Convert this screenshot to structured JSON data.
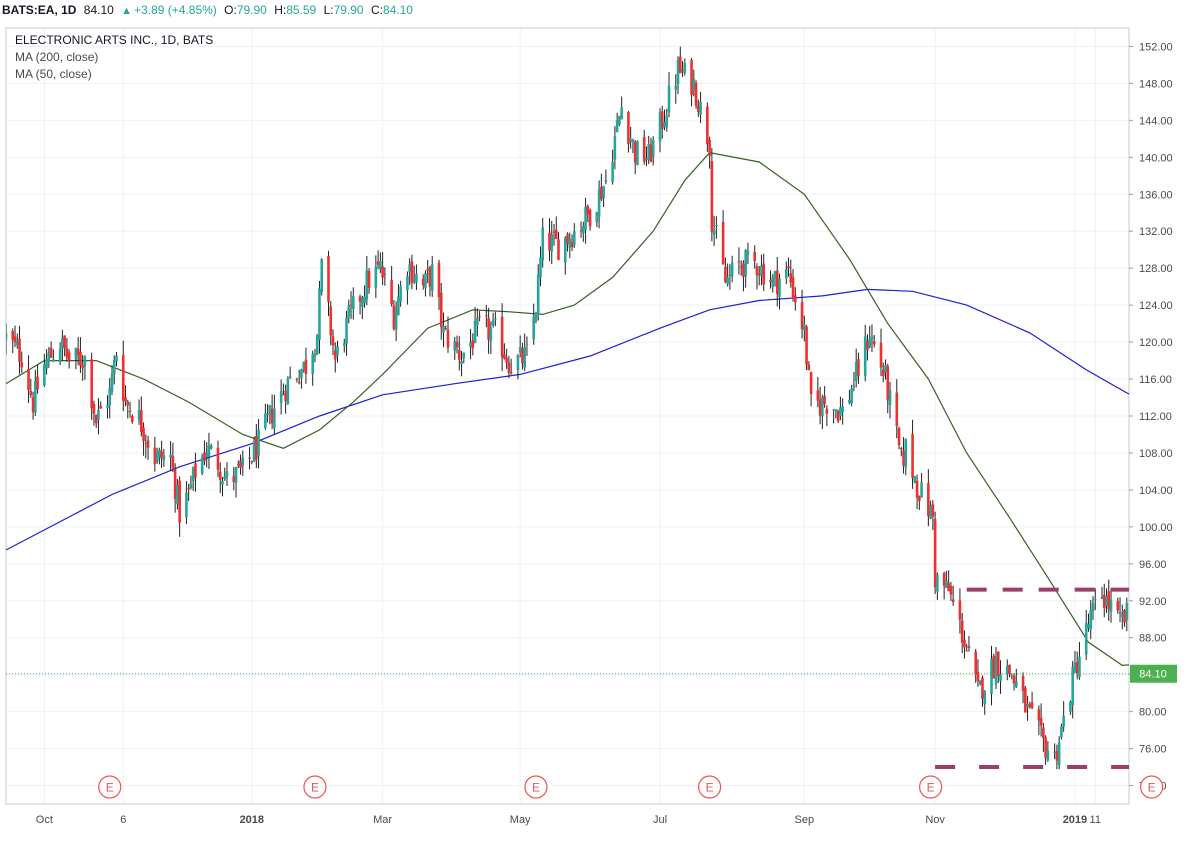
{
  "header": {
    "symbol": "BATS:EA, 1D",
    "last": "84.10",
    "change": "+3.89 (+4.85%)",
    "o_label": "O:",
    "o_val": "79.90",
    "h_label": "H:",
    "h_val": "85.59",
    "l_label": "L:",
    "l_val": "79.90",
    "c_label": "C:",
    "c_val": "84.10"
  },
  "legend": {
    "title": "ELECTRONIC ARTS INC., 1D, BATS",
    "ma200": "MA (200, close)",
    "ma50": "MA (50, close)"
  },
  "colors": {
    "up": "#26a69a",
    "down": "#ef3030",
    "ma200": "#1e1edc",
    "ma50": "#3a5e28",
    "dashes": "#9c3d6b",
    "last_price_bg": "#4caf50",
    "earnings": "#ef5350"
  },
  "icons": {
    "earnings": "earnings-E-marker-icon",
    "up": "up-arrow-icon"
  },
  "chart_data": {
    "type": "candlestick",
    "title": "ELECTRONIC ARTS INC., 1D, BATS",
    "xlabel": "",
    "ylabel": "",
    "ylim": [
      70,
      154
    ],
    "yticks": [
      "72.00",
      "76.00",
      "80.00",
      "84.00",
      "88.00",
      "92.00",
      "96.00",
      "100.00",
      "104.00",
      "108.00",
      "112.00",
      "116.00",
      "120.00",
      "124.00",
      "128.00",
      "132.00",
      "136.00",
      "140.00",
      "144.00",
      "148.00",
      "152.00"
    ],
    "x_range": [
      "2017-09-15",
      "2019-01-14"
    ],
    "xticks": [
      {
        "label": "Oct",
        "date": "2017-10-02"
      },
      {
        "label": "6",
        "date": "2017-11-06"
      },
      {
        "label": "2018",
        "date": "2018-01-02"
      },
      {
        "label": "Mar",
        "date": "2018-03-01"
      },
      {
        "label": "May",
        "date": "2018-05-01"
      },
      {
        "label": "Jul",
        "date": "2018-07-02"
      },
      {
        "label": "Sep",
        "date": "2018-09-04"
      },
      {
        "label": "Nov",
        "date": "2018-11-01"
      },
      {
        "label": "2019",
        "date": "2019-01-02"
      },
      {
        "label": "11",
        "date": "2019-01-11"
      }
    ],
    "last_price": 84.1,
    "grid": true,
    "price_path": [
      [
        "2017-09-15",
        120.5
      ],
      [
        "2017-09-22",
        118.5
      ],
      [
        "2017-09-27",
        113.5
      ],
      [
        "2017-10-02",
        117.5
      ],
      [
        "2017-10-09",
        120
      ],
      [
        "2017-10-13",
        118
      ],
      [
        "2017-10-20",
        118.2
      ],
      [
        "2017-10-25",
        111.5
      ],
      [
        "2017-10-31",
        114.5
      ],
      [
        "2017-11-03",
        119
      ],
      [
        "2017-11-07",
        113.5
      ],
      [
        "2017-11-13",
        111.8
      ],
      [
        "2017-11-20",
        107.5
      ],
      [
        "2017-11-27",
        107.5
      ],
      [
        "2017-12-01",
        101.5
      ],
      [
        "2017-12-05",
        103.5
      ],
      [
        "2017-12-08",
        106
      ],
      [
        "2017-12-13",
        108.5
      ],
      [
        "2017-12-18",
        107
      ],
      [
        "2017-12-22",
        105
      ],
      [
        "2017-12-29",
        106
      ],
      [
        "2018-01-05",
        109
      ],
      [
        "2018-01-12",
        113
      ],
      [
        "2018-01-19",
        116
      ],
      [
        "2018-01-26",
        117.5
      ],
      [
        "2018-01-31",
        121
      ],
      [
        "2018-02-02",
        128
      ],
      [
        "2018-02-08",
        118
      ],
      [
        "2018-02-14",
        122.5
      ],
      [
        "2018-02-22",
        126.5
      ],
      [
        "2018-02-28",
        128
      ],
      [
        "2018-03-06",
        123
      ],
      [
        "2018-03-12",
        128.5
      ],
      [
        "2018-03-19",
        126
      ],
      [
        "2018-03-23",
        127.5
      ],
      [
        "2018-03-28",
        121
      ],
      [
        "2018-04-05",
        118.5
      ],
      [
        "2018-04-13",
        121.5
      ],
      [
        "2018-04-20",
        121
      ],
      [
        "2018-04-27",
        117.5
      ],
      [
        "2018-05-04",
        118.5
      ],
      [
        "2018-05-08",
        124
      ],
      [
        "2018-05-11",
        131
      ],
      [
        "2018-05-18",
        130.5
      ],
      [
        "2018-05-25",
        132
      ],
      [
        "2018-06-01",
        134
      ],
      [
        "2018-06-08",
        137.5
      ],
      [
        "2018-06-15",
        145.5
      ],
      [
        "2018-06-21",
        140.5
      ],
      [
        "2018-06-27",
        140
      ],
      [
        "2018-07-03",
        144
      ],
      [
        "2018-07-10",
        149.5
      ],
      [
        "2018-07-17",
        148
      ],
      [
        "2018-07-24",
        141.5
      ],
      [
        "2018-07-25",
        133.5
      ],
      [
        "2018-07-31",
        126.5
      ],
      [
        "2018-08-07",
        128.5
      ],
      [
        "2018-08-14",
        128.5
      ],
      [
        "2018-08-21",
        126.5
      ],
      [
        "2018-08-28",
        127.5
      ],
      [
        "2018-09-04",
        121
      ],
      [
        "2018-09-07",
        113
      ],
      [
        "2018-09-14",
        113.5
      ],
      [
        "2018-09-21",
        112.5
      ],
      [
        "2018-09-28",
        117
      ],
      [
        "2018-10-03",
        121
      ],
      [
        "2018-10-10",
        116
      ],
      [
        "2018-10-17",
        107
      ],
      [
        "2018-10-19",
        108.5
      ],
      [
        "2018-10-24",
        104.5
      ],
      [
        "2018-10-31",
        101
      ],
      [
        "2018-11-01",
        94.5
      ],
      [
        "2018-11-07",
        93
      ],
      [
        "2018-11-13",
        88.5
      ],
      [
        "2018-11-20",
        82
      ],
      [
        "2018-11-28",
        85.5
      ],
      [
        "2018-12-05",
        84
      ],
      [
        "2018-12-12",
        80
      ],
      [
        "2018-12-19",
        76.5
      ],
      [
        "2018-12-24",
        75
      ],
      [
        "2018-12-28",
        79
      ],
      [
        "2019-01-02",
        84.5
      ],
      [
        "2019-01-08",
        89.5
      ],
      [
        "2019-01-14",
        92.8
      ],
      [
        "2019-01-22",
        89.5
      ],
      [
        "2019-02-01",
        92.3
      ],
      [
        "2019-02-05",
        90
      ],
      [
        "2019-02-06",
        80.2
      ],
      [
        "2019-02-07",
        84.1
      ]
    ],
    "series": [
      {
        "name": "MA (200, close)",
        "type": "line",
        "color": "#1e1edc",
        "points": [
          [
            "2017-09-15",
            97.5
          ],
          [
            "2017-11-01",
            103.5
          ],
          [
            "2017-12-01",
            106.5
          ],
          [
            "2018-01-02",
            109
          ],
          [
            "2018-02-01",
            112
          ],
          [
            "2018-03-01",
            114.3
          ],
          [
            "2018-04-02",
            115.5
          ],
          [
            "2018-05-01",
            116.5
          ],
          [
            "2018-06-01",
            118.5
          ],
          [
            "2018-07-02",
            121.5
          ],
          [
            "2018-07-24",
            123.5
          ],
          [
            "2018-08-15",
            124.5
          ],
          [
            "2018-09-12",
            125
          ],
          [
            "2018-10-02",
            125.7
          ],
          [
            "2018-10-22",
            125.5
          ],
          [
            "2018-11-15",
            124
          ],
          [
            "2018-12-13",
            121
          ],
          [
            "2019-01-07",
            117
          ],
          [
            "2019-01-25",
            114.5
          ],
          [
            "2019-02-07",
            113
          ]
        ]
      },
      {
        "name": "MA (50, close)",
        "type": "line",
        "color": "#3a5e28",
        "points": [
          [
            "2017-09-15",
            115.5
          ],
          [
            "2017-10-02",
            118
          ],
          [
            "2017-10-25",
            118
          ],
          [
            "2017-11-15",
            116
          ],
          [
            "2017-12-05",
            113.5
          ],
          [
            "2017-12-29",
            110
          ],
          [
            "2018-01-16",
            108.5
          ],
          [
            "2018-02-01",
            110.5
          ],
          [
            "2018-02-16",
            113.5
          ],
          [
            "2018-03-01",
            116.5
          ],
          [
            "2018-03-21",
            121.5
          ],
          [
            "2018-04-10",
            123.5
          ],
          [
            "2018-04-25",
            123.3
          ],
          [
            "2018-05-11",
            123
          ],
          [
            "2018-05-25",
            124
          ],
          [
            "2018-06-11",
            127
          ],
          [
            "2018-06-29",
            132
          ],
          [
            "2018-07-13",
            137.5
          ],
          [
            "2018-07-24",
            140.5
          ],
          [
            "2018-08-15",
            139.5
          ],
          [
            "2018-09-04",
            136
          ],
          [
            "2018-09-24",
            129
          ],
          [
            "2018-10-11",
            122
          ],
          [
            "2018-10-29",
            116
          ],
          [
            "2018-11-15",
            108
          ],
          [
            "2018-12-04",
            101
          ],
          [
            "2018-12-21",
            94.5
          ],
          [
            "2019-01-08",
            87.5
          ],
          [
            "2019-01-23",
            85
          ],
          [
            "2019-02-07",
            85.3
          ]
        ]
      }
    ],
    "annotations": {
      "earnings_label": "E",
      "earnings_dates": [
        "2017-10-31",
        "2018-01-30",
        "2018-05-08",
        "2018-07-24",
        "2018-10-30",
        "2019-02-05"
      ],
      "resistance_level": 93.2,
      "resistance_range": [
        "2018-11-15",
        "2019-02-07"
      ],
      "support_level": 74.0,
      "support_range": [
        "2018-11-01",
        "2019-02-07"
      ]
    }
  }
}
